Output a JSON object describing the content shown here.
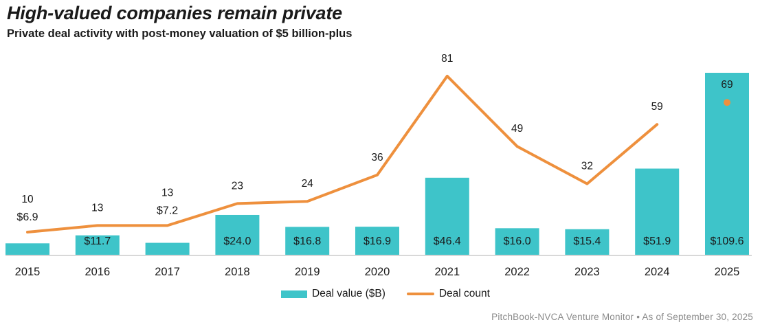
{
  "header": {
    "title": "High-valued companies remain private",
    "subtitle": "Private deal activity with post-money valuation of $5 billion-plus"
  },
  "legend": {
    "deal_value": "Deal value ($B)",
    "deal_count": "Deal count"
  },
  "footer": {
    "text": "PitchBook-NVCA Venture Monitor  •  As of September 30, 2025"
  },
  "colors": {
    "bar": "#3EC4C9",
    "line": "#EE903D",
    "marker": "#EE903D",
    "text": "#1a1a1a",
    "axis_line": "#cccccc",
    "footer_text": "#8a8a8a"
  },
  "chart_data": {
    "type": "bar",
    "subtype": "bar-line-combo",
    "title": "High-valued companies remain private",
    "subtitle": "Private deal activity with post-money valuation of $5 billion-plus",
    "categories": [
      "2015",
      "2016",
      "2017",
      "2018",
      "2019",
      "2020",
      "2021",
      "2022",
      "2023",
      "2024",
      "2025"
    ],
    "series": [
      {
        "name": "Deal value ($B)",
        "type": "bar",
        "values": [
          6.9,
          11.7,
          7.2,
          24.0,
          16.8,
          16.9,
          46.4,
          16.0,
          15.4,
          51.9,
          109.6
        ],
        "labels": [
          "$6.9",
          "$11.7",
          "$7.2",
          "$24.0",
          "$16.8",
          "$16.9",
          "$46.4",
          "$16.0",
          "$15.4",
          "$51.9",
          "$109.6"
        ]
      },
      {
        "name": "Deal count",
        "type": "line",
        "values": [
          10,
          13,
          13,
          23,
          24,
          36,
          81,
          49,
          32,
          59,
          69
        ],
        "labels": [
          "10",
          "13",
          "13",
          "23",
          "24",
          "36",
          "81",
          "49",
          "32",
          "59",
          "69"
        ],
        "isolated_last_point": true
      }
    ],
    "value_labels_outside_indices": [
      0,
      2
    ],
    "xlabel": "",
    "ylabel": "",
    "ylim_bar": [
      0,
      124
    ],
    "ylim_line": [
      0,
      94
    ],
    "grid": false,
    "legend_position": "bottom-center",
    "source": "PitchBook-NVCA Venture Monitor",
    "as_of": "As of September 30, 2025"
  }
}
